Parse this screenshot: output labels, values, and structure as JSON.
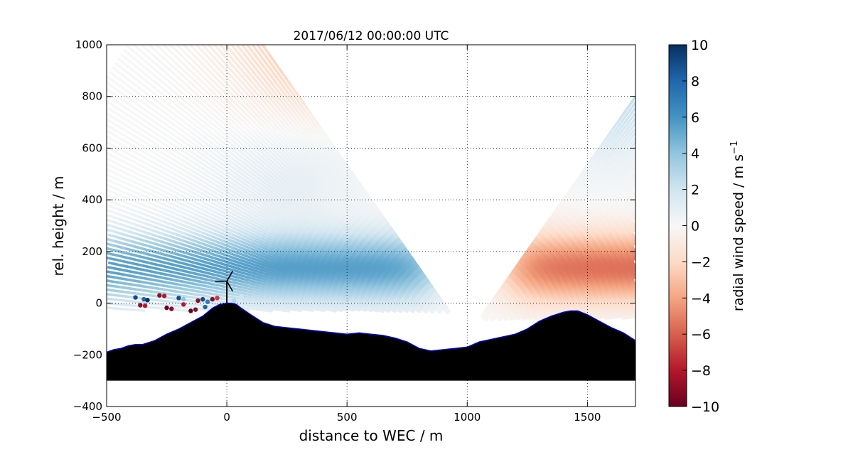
{
  "chart_data": {
    "type": "heatmap",
    "title": "2017/06/12 00:00:00 UTC",
    "xlabel": "distance to WEC / m",
    "ylabel": "rel. height / m",
    "xlim": [
      -500,
      1700
    ],
    "ylim": [
      -400,
      1000
    ],
    "x_ticks": [
      -500,
      0,
      500,
      1000,
      1500
    ],
    "x_tick_labels": [
      "−500",
      "0",
      "500",
      "1000",
      "1500"
    ],
    "y_ticks": [
      -400,
      -200,
      0,
      200,
      400,
      600,
      800,
      1000
    ],
    "y_tick_labels": [
      "−400",
      "−200",
      "0",
      "200",
      "400",
      "600",
      "800",
      "1000"
    ],
    "grid": true,
    "colorbar": {
      "label": "radial wind speed / m s",
      "label_superscript": "−1",
      "range": [
        -10,
        10
      ],
      "ticks": [
        10,
        8,
        6,
        4,
        2,
        0,
        -2,
        -4,
        -6,
        -8,
        -10
      ],
      "tick_labels": [
        "10",
        "8",
        "6",
        "4",
        "2",
        "0",
        "−2",
        "−4",
        "−6",
        "−8",
        "−10"
      ],
      "colormap": "RdBu"
    },
    "scan": {
      "origin": [
        1000,
        -130
      ],
      "min_range": 100,
      "max_range": 1800,
      "min_elevation_deg": 1,
      "max_elevation_deg": 53,
      "beams": 80
    },
    "terrain": {
      "fill_color": "#000000",
      "edge_color": "#0000cc",
      "bottom": -300,
      "profile_x": [
        -500,
        -470,
        -440,
        -410,
        -380,
        -350,
        -300,
        -250,
        -200,
        -150,
        -100,
        -60,
        -30,
        0,
        20,
        40,
        60,
        100,
        150,
        200,
        250,
        300,
        350,
        400,
        450,
        500,
        550,
        600,
        650,
        700,
        750,
        800,
        850,
        900,
        950,
        1000,
        1050,
        1100,
        1150,
        1200,
        1250,
        1300,
        1350,
        1400,
        1430,
        1460,
        1500,
        1550,
        1600,
        1650,
        1700
      ],
      "profile_y": [
        -190,
        -180,
        -175,
        -165,
        -160,
        -160,
        -145,
        -120,
        -100,
        -75,
        -50,
        -20,
        -5,
        0,
        0,
        -5,
        -20,
        -45,
        -75,
        -90,
        -95,
        -100,
        -105,
        -110,
        -115,
        -120,
        -115,
        -120,
        -125,
        -135,
        -150,
        -175,
        -185,
        -180,
        -175,
        -170,
        -150,
        -140,
        -130,
        -120,
        -100,
        -70,
        -50,
        -35,
        -30,
        -30,
        -45,
        -70,
        -95,
        -115,
        -145
      ]
    },
    "turbine": {
      "x": 0,
      "hub_height": 85,
      "rotor_radius": 45
    },
    "near_points": [
      {
        "x": -380,
        "y": 22,
        "v": 9
      },
      {
        "x": -345,
        "y": 15,
        "v": 8
      },
      {
        "x": -330,
        "y": 12,
        "v": 10
      },
      {
        "x": -280,
        "y": 30,
        "v": -9
      },
      {
        "x": -260,
        "y": 28,
        "v": -8
      },
      {
        "x": -200,
        "y": 20,
        "v": 9
      },
      {
        "x": -180,
        "y": 15,
        "v": 4
      },
      {
        "x": -120,
        "y": 10,
        "v": -9
      },
      {
        "x": -100,
        "y": 15,
        "v": 9
      },
      {
        "x": -80,
        "y": 5,
        "v": 7
      },
      {
        "x": -60,
        "y": 15,
        "v": -9
      },
      {
        "x": -360,
        "y": -8,
        "v": -9
      },
      {
        "x": -340,
        "y": -10,
        "v": -8
      },
      {
        "x": -250,
        "y": -18,
        "v": -10
      },
      {
        "x": -230,
        "y": -22,
        "v": -9
      },
      {
        "x": -180,
        "y": -5,
        "v": -8
      },
      {
        "x": -150,
        "y": -30,
        "v": -10
      },
      {
        "x": -130,
        "y": -25,
        "v": -9
      },
      {
        "x": -90,
        "y": -15,
        "v": 8
      },
      {
        "x": -40,
        "y": 20,
        "v": -7
      },
      {
        "x": 30,
        "y": 10,
        "v": 3
      },
      {
        "x": 60,
        "y": 25,
        "v": 2
      }
    ]
  }
}
